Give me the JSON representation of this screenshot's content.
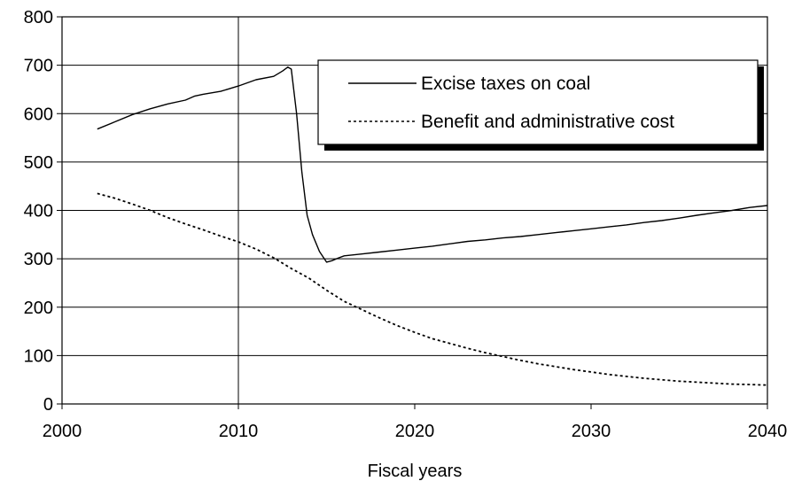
{
  "chart_data": {
    "type": "line",
    "title": "",
    "xlabel": "Fiscal years",
    "ylabel": "",
    "xlim": [
      2000,
      2040
    ],
    "ylim": [
      0,
      800
    ],
    "xticks": [
      2000,
      2010,
      2020,
      2030,
      2040
    ],
    "yticks": [
      0,
      100,
      200,
      300,
      400,
      500,
      600,
      700,
      800
    ],
    "grid": "horizontal lines plus vertical line at 2010",
    "legend_position": "top-right",
    "series": [
      {
        "name": "Excise taxes on coal",
        "style": "solid",
        "color": "#000000",
        "x": [
          2002,
          2003,
          2004,
          2005,
          2006,
          2007,
          2007.5,
          2008,
          2009,
          2010,
          2011,
          2012,
          2012.5,
          2012.8,
          2013,
          2013.3,
          2013.6,
          2013.9,
          2014.2,
          2014.6,
          2015,
          2015.3,
          2015.7,
          2016,
          2017,
          2018,
          2019,
          2020,
          2021,
          2022,
          2023,
          2024,
          2025,
          2026,
          2027,
          2028,
          2029,
          2030,
          2031,
          2032,
          2033,
          2034,
          2035,
          2036,
          2037,
          2038,
          2039,
          2040
        ],
        "y": [
          568,
          583,
          598,
          610,
          620,
          628,
          636,
          640,
          646,
          657,
          670,
          677,
          688,
          696,
          692,
          600,
          480,
          390,
          350,
          315,
          293,
          296,
          302,
          306,
          310,
          314,
          318,
          322,
          326,
          331,
          336,
          339,
          343,
          346,
          350,
          354,
          358,
          362,
          366,
          370,
          375,
          379,
          384,
          390,
          395,
          400,
          406,
          410
        ]
      },
      {
        "name": "Benefit and administrative cost",
        "style": "dotted",
        "color": "#000000",
        "x": [
          2002,
          2003,
          2004,
          2005,
          2006,
          2007,
          2008,
          2009,
          2010,
          2011,
          2012,
          2013,
          2014,
          2015,
          2016,
          2017,
          2018,
          2019,
          2020,
          2021,
          2022,
          2023,
          2024,
          2025,
          2026,
          2027,
          2028,
          2029,
          2030,
          2031,
          2032,
          2033,
          2034,
          2035,
          2036,
          2037,
          2038,
          2039,
          2040
        ],
        "y": [
          435,
          425,
          413,
          400,
          385,
          372,
          360,
          347,
          335,
          320,
          302,
          280,
          260,
          235,
          212,
          195,
          178,
          162,
          148,
          135,
          125,
          115,
          106,
          98,
          90,
          83,
          77,
          71,
          66,
          61,
          57,
          53,
          50,
          47,
          45,
          43,
          41,
          40,
          39
        ]
      }
    ]
  }
}
